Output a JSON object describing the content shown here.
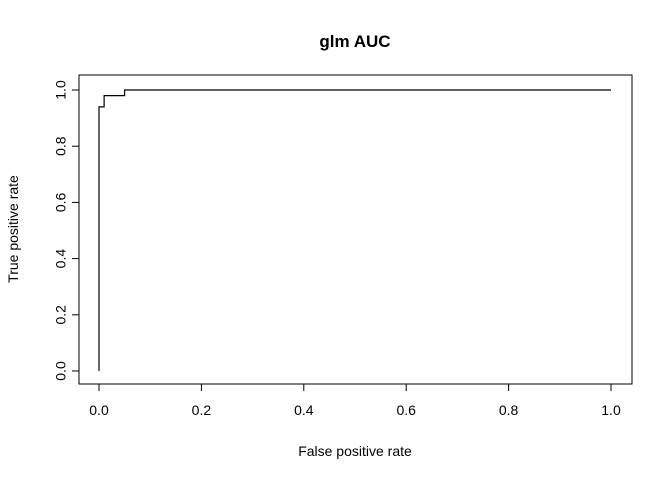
{
  "chart_data": {
    "type": "line",
    "title": "glm AUC",
    "xlabel": "False positive rate",
    "ylabel": "True positive rate",
    "xlim": [
      0,
      1
    ],
    "ylim": [
      0,
      1
    ],
    "x_ticks": [
      "0.0",
      "0.2",
      "0.4",
      "0.6",
      "0.8",
      "1.0"
    ],
    "y_ticks": [
      "0.0",
      "0.2",
      "0.4",
      "0.6",
      "0.8",
      "1.0"
    ],
    "grid": false,
    "series": [
      {
        "color": "#000000",
        "x": [
          0.0,
          0.0,
          0.01,
          0.01,
          0.05,
          0.05,
          1.0
        ],
        "y": [
          0.0,
          0.94,
          0.94,
          0.98,
          0.98,
          1.0,
          1.0
        ]
      }
    ]
  }
}
